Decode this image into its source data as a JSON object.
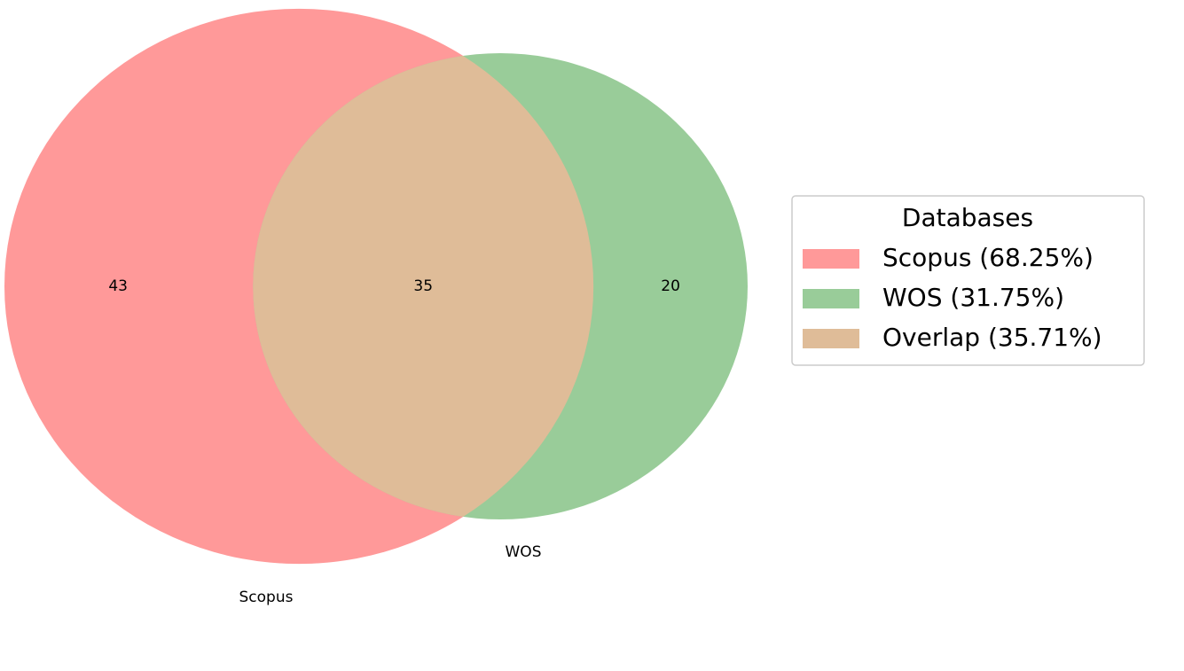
{
  "chart_data": {
    "type": "venn",
    "sets": [
      {
        "name": "Scopus",
        "color": "#ff9999"
      },
      {
        "name": "WOS",
        "color": "#99cc99"
      }
    ],
    "regions": {
      "values": [
        43,
        35,
        20
      ],
      "overlap_color": "#dfbc98"
    },
    "legend": {
      "title": "Databases",
      "corner": "right",
      "entries": [
        {
          "label": "Scopus (68.25%)",
          "color": "#ff9999"
        },
        {
          "label": "WOS (31.75%)",
          "color": "#99cc99"
        },
        {
          "label": "Overlap (35.71%)",
          "color": "#dfbc98"
        }
      ]
    }
  }
}
